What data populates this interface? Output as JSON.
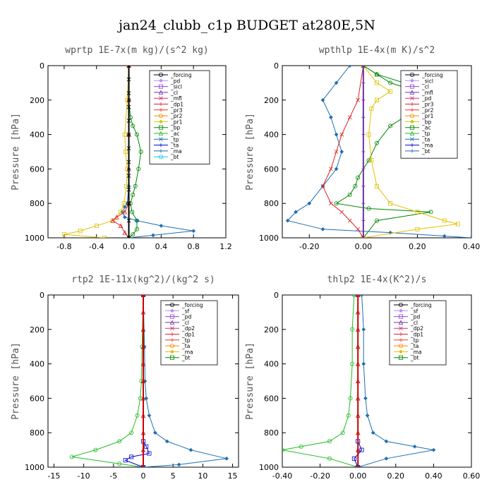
{
  "title": "jan24_clubb_c1p  BUDGET at280E,5N",
  "chart_data": [
    {
      "type": "line",
      "title": "wprtp  1E-7x(m kg)/(s^2 kg)",
      "ylabel": "Pressure [hPa]",
      "xlim": [
        -1.0,
        1.2
      ],
      "ylim": [
        1000,
        0
      ],
      "xticks": [
        -0.8,
        -0.4,
        0.0,
        0.4,
        0.8,
        1.2
      ],
      "xtick_labels": [
        "-0.8",
        "-0.4",
        "0.0",
        "0.4",
        "0.8",
        "1.2"
      ],
      "yticks": [
        0,
        200,
        400,
        600,
        800,
        1000
      ],
      "ytick_labels": [
        "0",
        "200",
        "400",
        "600",
        "800",
        "1000"
      ],
      "legend": [
        "_forcing",
        "_pd",
        "_sicl",
        "_cl",
        "_mfl",
        "_dp1",
        "_pr3",
        "_pr2",
        "_pr1",
        "_bp",
        "_ac",
        "_tp",
        "_ta",
        "_ma",
        "_bt"
      ],
      "legend_position": "top-right",
      "series": [
        {
          "name": "_bp",
          "color": "#008800",
          "x": [
            0,
            0,
            0.02,
            0.05,
            0.1,
            0.15,
            0.12,
            0.08,
            0.05,
            0.02,
            0.04,
            0.1,
            0.1,
            0.05,
            0
          ],
          "y": [
            0,
            200,
            300,
            350,
            400,
            500,
            600,
            700,
            750,
            800,
            850,
            900,
            950,
            980,
            1000
          ]
        },
        {
          "name": "_tp",
          "color": "#1f6fb2",
          "x": [
            0,
            0,
            0,
            0,
            0,
            -0.02,
            -0.05,
            -0.08,
            -0.05,
            0.1,
            0.4,
            0.8,
            0.3,
            0
          ],
          "y": [
            0,
            200,
            400,
            600,
            700,
            800,
            820,
            850,
            880,
            900,
            930,
            960,
            985,
            1000
          ]
        },
        {
          "name": "_pr1",
          "color": "#e0c000",
          "x": [
            0,
            -0.02,
            -0.05,
            -0.04,
            -0.02,
            -0.03,
            -0.06,
            -0.1,
            -0.2,
            -0.4,
            -0.6,
            -0.8,
            -0.3
          ],
          "y": [
            0,
            200,
            400,
            500,
            600,
            700,
            800,
            850,
            900,
            930,
            960,
            980,
            1000
          ]
        },
        {
          "name": "_dp1",
          "color": "#dd2222",
          "x": [
            0,
            0,
            0,
            0,
            0,
            -0.05,
            -0.15,
            -0.2,
            -0.1,
            -0.05,
            0
          ],
          "y": [
            0,
            200,
            400,
            600,
            800,
            850,
            880,
            900,
            930,
            970,
            1000
          ]
        },
        {
          "name": "_forcing",
          "color": "#000000",
          "x": [
            0,
            0,
            0,
            0,
            0,
            0,
            0,
            0,
            0,
            0,
            0,
            0,
            0
          ],
          "y": [
            0,
            80,
            160,
            240,
            320,
            400,
            480,
            560,
            640,
            720,
            800,
            900,
            1000
          ]
        }
      ]
    },
    {
      "type": "line",
      "title": "wpthlp  1E-4x(m K)/s^2",
      "ylabel": "Pressure [hPa]",
      "xlim": [
        -0.3,
        0.4
      ],
      "ylim": [
        1000,
        0
      ],
      "xticks": [
        -0.2,
        0.0,
        0.2,
        0.4
      ],
      "xtick_labels": [
        "-0.20",
        "0.00",
        "0.20",
        "0.40"
      ],
      "yticks": [
        0,
        200,
        400,
        600,
        800,
        1000
      ],
      "ytick_labels": [
        "0",
        "200",
        "400",
        "600",
        "800",
        "1000"
      ],
      "legend": [
        "_forcing",
        "_sicl",
        "_cl",
        "_mfl",
        "_pd",
        "_pr3",
        "_pr2",
        "_pr1",
        "_bp",
        "_ac",
        "_tp",
        "_ta",
        "_ma",
        "_bt"
      ],
      "legend_position": "top-right",
      "series": [
        {
          "name": "_bp",
          "color": "#008800",
          "x": [
            0,
            0.05,
            0.1,
            0.2,
            0.25,
            0.2,
            0.1,
            0.05,
            0.02,
            -0.02,
            -0.03,
            -0.05,
            -0.1,
            0.02,
            0.25,
            0.05,
            0
          ],
          "y": [
            0,
            50,
            100,
            150,
            200,
            250,
            350,
            450,
            550,
            650,
            700,
            750,
            800,
            830,
            850,
            900,
            1000
          ]
        },
        {
          "name": "_tp",
          "color": "#1f6fb2",
          "x": [
            -0.05,
            -0.1,
            -0.15,
            -0.12,
            -0.1,
            -0.08,
            -0.1,
            -0.15,
            -0.2,
            -0.25,
            -0.28,
            -0.15,
            0.1,
            0.3,
            0.4
          ],
          "y": [
            0,
            100,
            200,
            300,
            400,
            500,
            600,
            700,
            800,
            850,
            900,
            950,
            970,
            990,
            1000
          ]
        },
        {
          "name": "_pr1",
          "color": "#e0c000",
          "x": [
            0,
            0.05,
            0.1,
            0.05,
            0.03,
            0.02,
            0.03,
            0.05,
            0.1,
            0.2,
            0.3,
            0.35,
            0.2,
            0
          ],
          "y": [
            0,
            100,
            150,
            200,
            250,
            400,
            550,
            700,
            800,
            850,
            900,
            920,
            950,
            1000
          ]
        },
        {
          "name": "_ac",
          "color": "#008800",
          "x": [
            0,
            0.05,
            0.15,
            0.25,
            0.3
          ],
          "y": [
            0,
            50,
            100,
            150,
            200
          ]
        },
        {
          "name": "_dp1",
          "color": "#dd2222",
          "x": [
            0,
            -0.02,
            -0.05,
            -0.08,
            -0.1,
            -0.12,
            -0.15,
            -0.12,
            -0.08,
            -0.05,
            -0.02,
            0
          ],
          "y": [
            0,
            200,
            300,
            400,
            500,
            600,
            700,
            800,
            850,
            900,
            950,
            1000
          ]
        },
        {
          "name": "_forcing",
          "color": "#7030a0",
          "x": [
            0,
            0,
            0,
            0,
            0,
            0,
            0,
            0,
            0,
            0,
            0
          ],
          "y": [
            0,
            100,
            200,
            300,
            400,
            500,
            600,
            700,
            800,
            900,
            1000
          ]
        }
      ]
    },
    {
      "type": "line",
      "title": "rtp2  1E-11x(kg^2)/(kg^2 s)",
      "ylabel": "Pressure [hPa]",
      "xlim": [
        -16,
        16
      ],
      "ylim": [
        1000,
        0
      ],
      "xticks": [
        -15,
        -10,
        -5,
        0,
        5,
        10,
        15
      ],
      "xtick_labels": [
        "-15",
        "-10",
        "-5",
        "0",
        "5",
        "10",
        "15"
      ],
      "yticks": [
        0,
        200,
        400,
        600,
        800,
        1000
      ],
      "ytick_labels": [
        "0",
        "200",
        "400",
        "600",
        "800",
        "1000"
      ],
      "legend": [
        "_forcing",
        "_sf",
        "_pd",
        "_cl",
        "_dp2",
        "_dp1",
        "_tp",
        "_ta",
        "_ma",
        "_bt"
      ],
      "legend_position": "top-right",
      "series": [
        {
          "name": "_dp2",
          "color": "#22bb22",
          "x": [
            0,
            -0.2,
            -0.3,
            -0.5,
            -1,
            -2,
            -4,
            -8,
            -12,
            -4,
            0
          ],
          "y": [
            0,
            300,
            500,
            600,
            700,
            800,
            850,
            900,
            940,
            980,
            1000
          ]
        },
        {
          "name": "_tp",
          "color": "#1f6fb2",
          "x": [
            0,
            0.2,
            0.3,
            0.5,
            1,
            2,
            4,
            8,
            14,
            6,
            0
          ],
          "y": [
            0,
            300,
            500,
            600,
            700,
            800,
            850,
            900,
            950,
            985,
            1000
          ]
        },
        {
          "name": "_ta",
          "color": "#0000cc",
          "x": [
            0,
            0,
            0.5,
            1,
            -2,
            -3,
            0
          ],
          "y": [
            0,
            850,
            880,
            920,
            940,
            960,
            1000
          ]
        },
        {
          "name": "_forcing",
          "color": "#cc0000",
          "x": [
            0,
            0,
            0,
            0,
            0,
            0,
            0,
            0,
            0,
            0,
            0
          ],
          "y": [
            0,
            100,
            200,
            300,
            400,
            500,
            600,
            700,
            800,
            900,
            1000
          ]
        }
      ]
    },
    {
      "type": "line",
      "title": "thlp2  1E-4x(K^2)/s",
      "ylabel": "Pressure [hPa]",
      "xlim": [
        -0.4,
        0.6
      ],
      "ylim": [
        1000,
        0
      ],
      "xticks": [
        -0.4,
        -0.2,
        0.0,
        0.2,
        0.4,
        0.6
      ],
      "xtick_labels": [
        "-0.40",
        "-0.20",
        "0.00",
        "0.20",
        "0.40",
        "0.60"
      ],
      "yticks": [
        0,
        200,
        400,
        600,
        800,
        1000
      ],
      "ytick_labels": [
        "0",
        "200",
        "400",
        "600",
        "800",
        "1000"
      ],
      "legend": [
        "_forcing",
        "_sf",
        "_pd",
        "_cl",
        "_dp2",
        "_dp1",
        "_tp",
        "_ta",
        "_ma",
        "_bt"
      ],
      "legend_position": "top-right",
      "series": [
        {
          "name": "_dp2",
          "color": "#22bb22",
          "x": [
            -0.02,
            -0.03,
            -0.03,
            -0.04,
            -0.05,
            -0.08,
            -0.15,
            -0.3,
            -0.4,
            -0.15,
            0
          ],
          "y": [
            0,
            200,
            400,
            600,
            700,
            800,
            850,
            880,
            900,
            950,
            1000
          ]
        },
        {
          "name": "_tp",
          "color": "#1f6fb2",
          "x": [
            0.02,
            0.03,
            0.03,
            0.04,
            0.05,
            0.08,
            0.15,
            0.3,
            0.4,
            0.15,
            0
          ],
          "y": [
            0,
            200,
            400,
            600,
            700,
            800,
            850,
            880,
            900,
            950,
            1000
          ]
        },
        {
          "name": "_ta",
          "color": "#0000cc",
          "x": [
            0,
            0,
            0.02,
            -0.02,
            0
          ],
          "y": [
            0,
            850,
            900,
            950,
            1000
          ]
        },
        {
          "name": "_forcing",
          "color": "#cc0000",
          "x": [
            0,
            0,
            0,
            0,
            0,
            0,
            0,
            0,
            0,
            0,
            0
          ],
          "y": [
            0,
            100,
            200,
            300,
            400,
            500,
            600,
            700,
            800,
            900,
            1000
          ]
        }
      ]
    }
  ]
}
